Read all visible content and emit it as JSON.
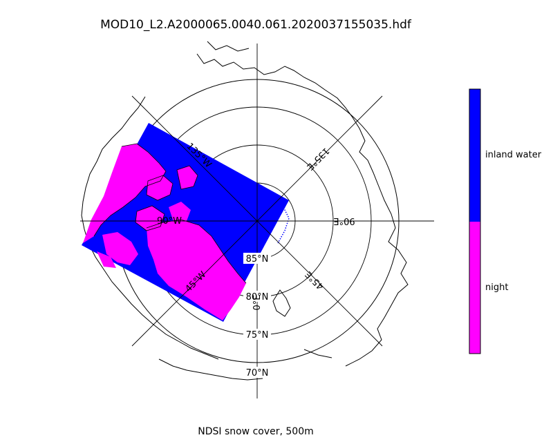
{
  "title": "MOD10_L2.A2000065.0040.061.2020037155035.hdf",
  "caption": "NDSI snow cover, 500m",
  "colorbar": {
    "entries": [
      {
        "label": "inland water",
        "color": "#0000ff"
      },
      {
        "label": "night",
        "color": "#ff00ff"
      }
    ]
  },
  "graticule": {
    "lat_labels": [
      {
        "label": "85°N"
      },
      {
        "label": "80°N"
      },
      {
        "label": "75°N"
      },
      {
        "label": "70°N"
      }
    ],
    "lon_labels": [
      {
        "label": "0°E"
      },
      {
        "label": "45°E"
      },
      {
        "label": "90°E"
      },
      {
        "label": "135°E"
      },
      {
        "label": "135°W"
      },
      {
        "label": "90°W"
      },
      {
        "label": "45°W"
      }
    ]
  }
}
